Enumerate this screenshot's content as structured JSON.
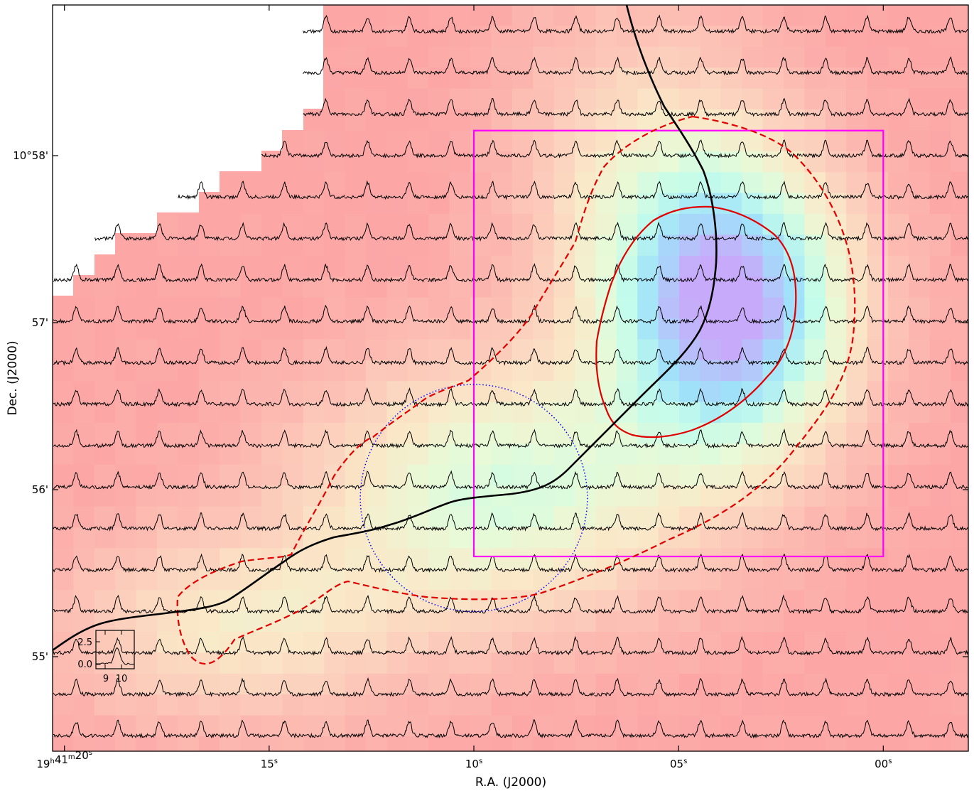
{
  "chart_data": {
    "type": "heatmap",
    "title": "",
    "xlabel": "R.A. (J2000)",
    "ylabel": "Dec. (J2000)",
    "x_ticks": [
      {
        "ra_sec": 20,
        "label_main": "19",
        "sup1": "h",
        "mid": "41",
        "sup2": "m",
        "tail": "20",
        "sup3": "s"
      },
      {
        "ra_sec": 15,
        "label_main": "15",
        "sup3": "s"
      },
      {
        "ra_sec": 10,
        "label_main": "10",
        "sup3": "s"
      },
      {
        "ra_sec": 5,
        "label_main": "05",
        "sup3": "s"
      },
      {
        "ra_sec": 0,
        "label_main": "00",
        "sup3": "s"
      }
    ],
    "y_ticks": [
      {
        "dec_arcmin": 58,
        "label": "10°58'"
      },
      {
        "dec_arcmin": 57,
        "label": "57'"
      },
      {
        "dec_arcmin": 56,
        "label": "56'"
      },
      {
        "dec_arcmin": 55,
        "label": "55'"
      }
    ],
    "xlim_ra_sec": [
      20.3,
      -2.0
    ],
    "ylim_dec_arcmin": [
      54.45,
      59.0
    ],
    "grid": "spectra-grid",
    "spectra_grid": {
      "columns": 22,
      "rows": 18,
      "profile": "single peaked line profile at ~10 km/s"
    },
    "background_map": {
      "colormap": "red-yellow-cyan-violet",
      "peak_ra_sec": 3.7,
      "peak_dec_arcmin": 57.1
    },
    "inset_axes": {
      "yticks": [
        "2.5",
        "0.0"
      ],
      "xticks": [
        "9",
        "10"
      ]
    },
    "overlays": {
      "box": {
        "color": "#ff00ff",
        "ra_sec": [
          10.0,
          0.0
        ],
        "dec_arcmin": [
          55.6,
          58.15
        ]
      },
      "beam_circle": {
        "color": "#0000ff",
        "center_ra_sec": 10.0,
        "center_dec_arcmin": 55.95,
        "radius_arcmin": 0.68,
        "style": "dotted"
      },
      "contour_inner": {
        "color": "#e00000",
        "style": "solid"
      },
      "contour_outer": {
        "color": "#e00000",
        "style": "dashed"
      },
      "curve": {
        "color": "#000000",
        "style": "solid"
      }
    }
  }
}
